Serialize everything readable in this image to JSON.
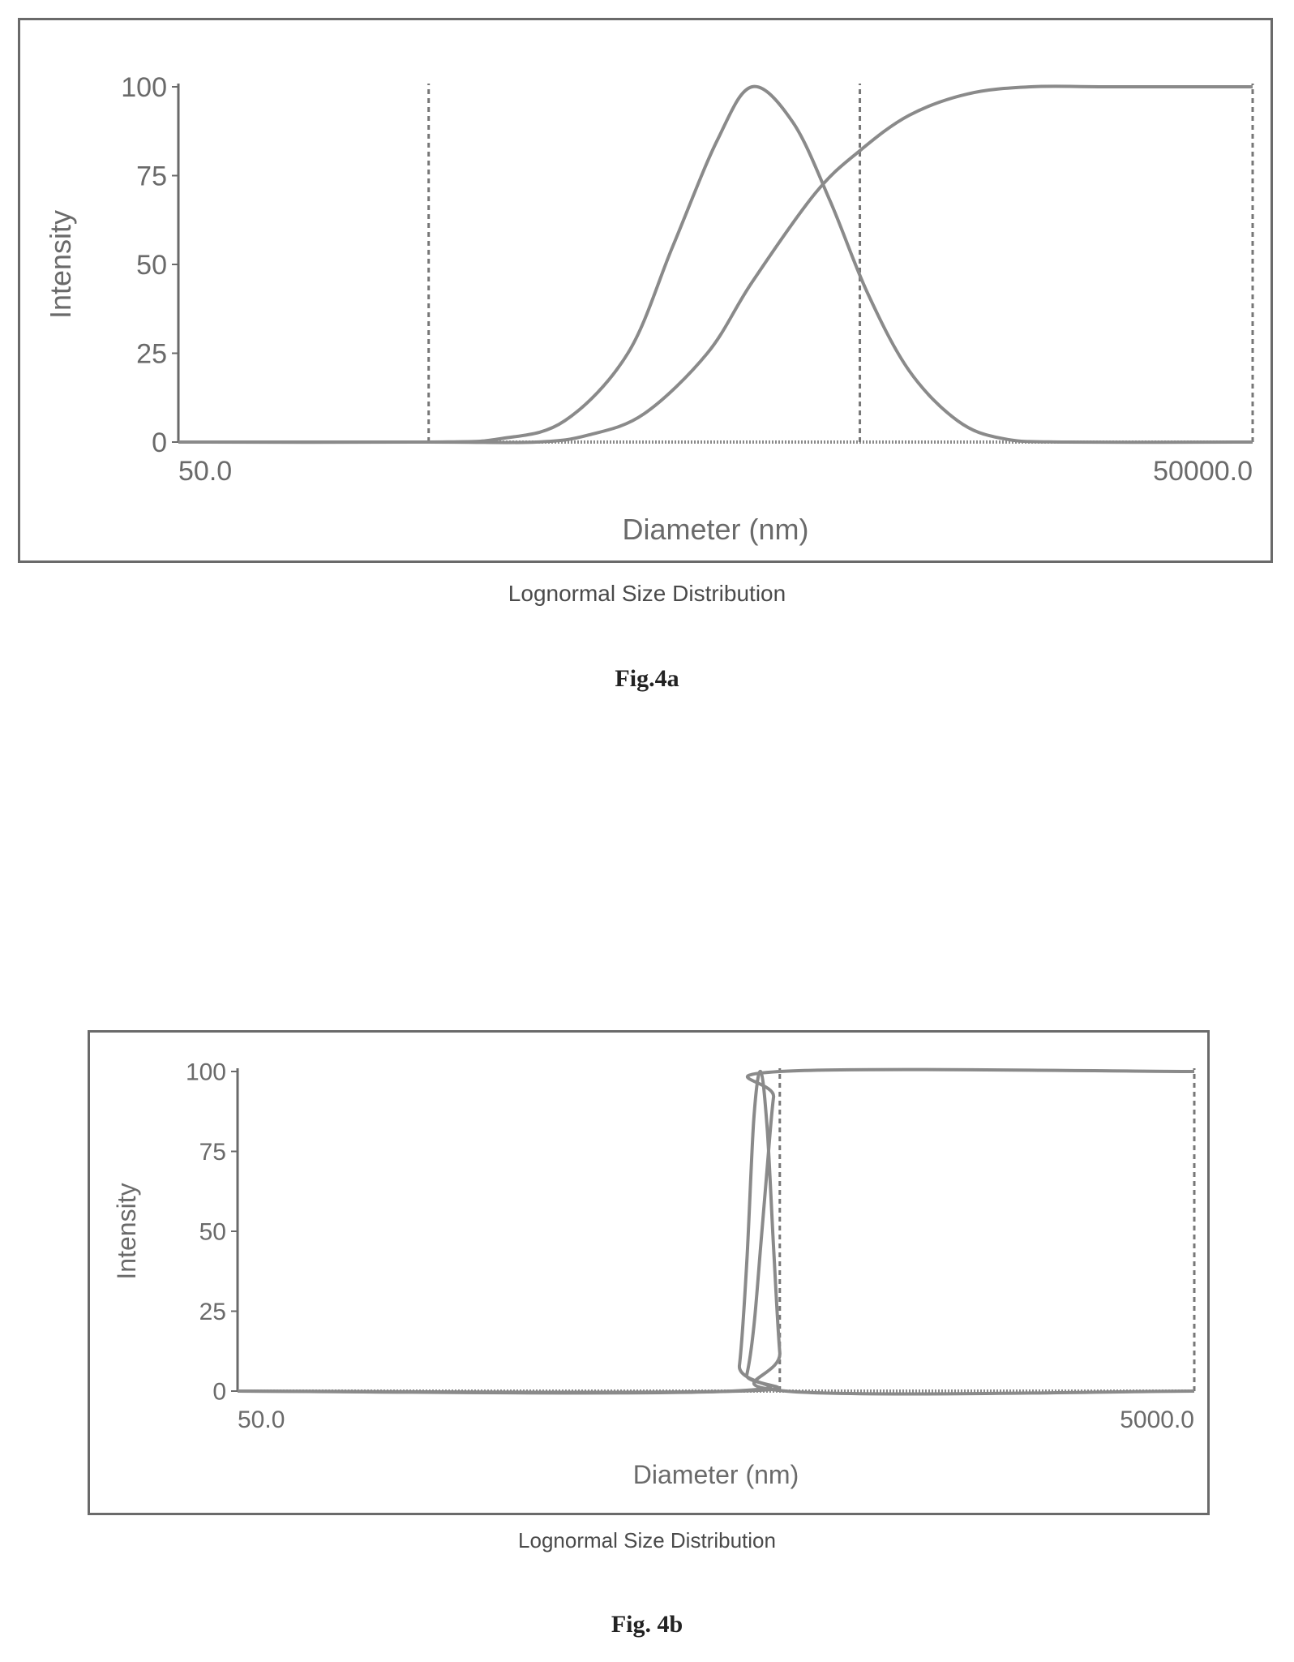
{
  "chart_data": [
    {
      "type": "line",
      "figure_label": "Fig.4a",
      "caption": "Lognormal Size Distribution",
      "title": "",
      "xlabel": "Diameter (nm)",
      "ylabel": "Intensity",
      "x_scale": "log",
      "xlim": [
        50.0,
        50000.0
      ],
      "ylim": [
        0,
        100
      ],
      "x_tick_labels": [
        "50.0",
        "50000.0"
      ],
      "y_ticks": [
        0,
        25,
        50,
        75,
        100
      ],
      "grid": false,
      "line_color": "#8a8a8a",
      "series": [
        {
          "type": "distribution",
          "x": [
            50,
            250,
            400,
            600,
            900,
            1200,
            1600,
            2000,
            2600,
            3300,
            4200,
            5500,
            7500,
            10000,
            15000,
            50000
          ],
          "y": [
            0,
            0,
            1,
            6,
            25,
            55,
            85,
            100,
            90,
            68,
            42,
            20,
            6,
            1,
            0,
            0
          ]
        },
        {
          "type": "cumulative",
          "x": [
            50,
            250,
            500,
            700,
            1000,
            1500,
            2000,
            3000,
            4000,
            5500,
            8000,
            12000,
            20000,
            50000
          ],
          "y": [
            0,
            0,
            0,
            2,
            8,
            25,
            45,
            70,
            82,
            92,
            98,
            100,
            100,
            100
          ]
        }
      ],
      "reference_lines_x": [
        250,
        4000,
        50000
      ]
    },
    {
      "type": "line",
      "figure_label": "Fig. 4b",
      "caption": "Lognormal Size Distribution",
      "title": "",
      "xlabel": "Diameter (nm)",
      "ylabel": "Intensity",
      "x_scale": "log",
      "xlim": [
        50.0,
        5000.0
      ],
      "ylim": [
        0,
        100
      ],
      "x_tick_labels": [
        "50.0",
        "5000.0"
      ],
      "y_ticks": [
        0,
        25,
        50,
        75,
        100
      ],
      "grid": false,
      "line_color": "#8a8a8a",
      "series": [
        {
          "type": "distribution",
          "x": [
            50,
            540,
            560,
            580,
            600,
            620,
            640,
            660,
            680,
            700,
            5000
          ],
          "y": [
            0,
            0,
            8,
            40,
            85,
            100,
            82,
            45,
            12,
            0,
            0
          ]
        },
        {
          "type": "cumulative",
          "x": [
            50,
            560,
            580,
            600,
            620,
            640,
            660,
            680,
            5000
          ],
          "y": [
            0,
            0,
            5,
            20,
            45,
            70,
            92,
            100,
            100
          ]
        }
      ],
      "reference_lines_x": [
        680,
        5000
      ]
    }
  ]
}
